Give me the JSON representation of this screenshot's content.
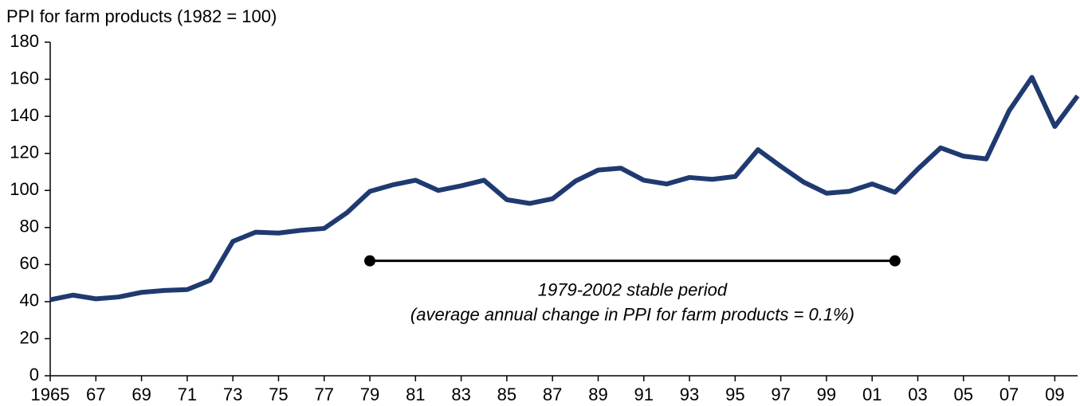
{
  "chart_data": {
    "type": "line",
    "y_axis_label": "PPI for farm products (1982 = 100)",
    "x": [
      1965,
      1966,
      1967,
      1968,
      1969,
      1970,
      1971,
      1972,
      1973,
      1974,
      1975,
      1976,
      1977,
      1978,
      1979,
      1980,
      1981,
      1982,
      1983,
      1984,
      1985,
      1986,
      1987,
      1988,
      1989,
      1990,
      1991,
      1992,
      1993,
      1994,
      1995,
      1996,
      1997,
      1998,
      1999,
      2000,
      2001,
      2002,
      2003,
      2004,
      2005,
      2006,
      2007,
      2008,
      2009,
      2010
    ],
    "series": [
      {
        "color": "#1f3a70",
        "values": [
          41,
          43.5,
          41.5,
          42.5,
          45,
          46,
          46.5,
          51.5,
          72.5,
          77.5,
          77,
          78.5,
          79.5,
          88,
          99.5,
          103,
          105.5,
          100,
          102.5,
          105.5,
          95,
          93,
          95.5,
          105,
          111,
          112,
          105.5,
          103.5,
          107,
          106,
          107.5,
          122,
          113,
          104.5,
          98.5,
          99.5,
          103.5,
          99,
          111.5,
          123,
          118.5,
          117,
          143,
          161,
          134.5,
          151
        ]
      }
    ],
    "xlim": [
      1965,
      2010
    ],
    "xticks": [
      1965,
      {
        "value": 1967,
        "label": "67"
      },
      {
        "value": 1969,
        "label": "69"
      },
      {
        "value": 1971,
        "label": "71"
      },
      {
        "value": 1973,
        "label": "73"
      },
      {
        "value": 1975,
        "label": "75"
      },
      {
        "value": 1977,
        "label": "77"
      },
      {
        "value": 1979,
        "label": "79"
      },
      {
        "value": 1981,
        "label": "81"
      },
      {
        "value": 1983,
        "label": "83"
      },
      {
        "value": 1985,
        "label": "85"
      },
      {
        "value": 1987,
        "label": "87"
      },
      {
        "value": 1989,
        "label": "89"
      },
      {
        "value": 1991,
        "label": "91"
      },
      {
        "value": 1993,
        "label": "93"
      },
      {
        "value": 1995,
        "label": "95"
      },
      {
        "value": 1997,
        "label": "97"
      },
      {
        "value": 1999,
        "label": "99"
      },
      {
        "value": 2001,
        "label": "01"
      },
      {
        "value": 2003,
        "label": "03"
      },
      {
        "value": 2005,
        "label": "05"
      },
      {
        "value": 2007,
        "label": "07"
      },
      {
        "value": 2009,
        "label": "09"
      }
    ],
    "ylim": [
      0,
      180
    ],
    "yticks": [
      0,
      20,
      40,
      60,
      80,
      100,
      120,
      140,
      160,
      180
    ],
    "annotation": {
      "start": 1979,
      "end": 2002,
      "level": 62,
      "text": [
        "1979-2002 stable period",
        "(average annual change in PPI for farm products = 0.1%)"
      ]
    }
  }
}
